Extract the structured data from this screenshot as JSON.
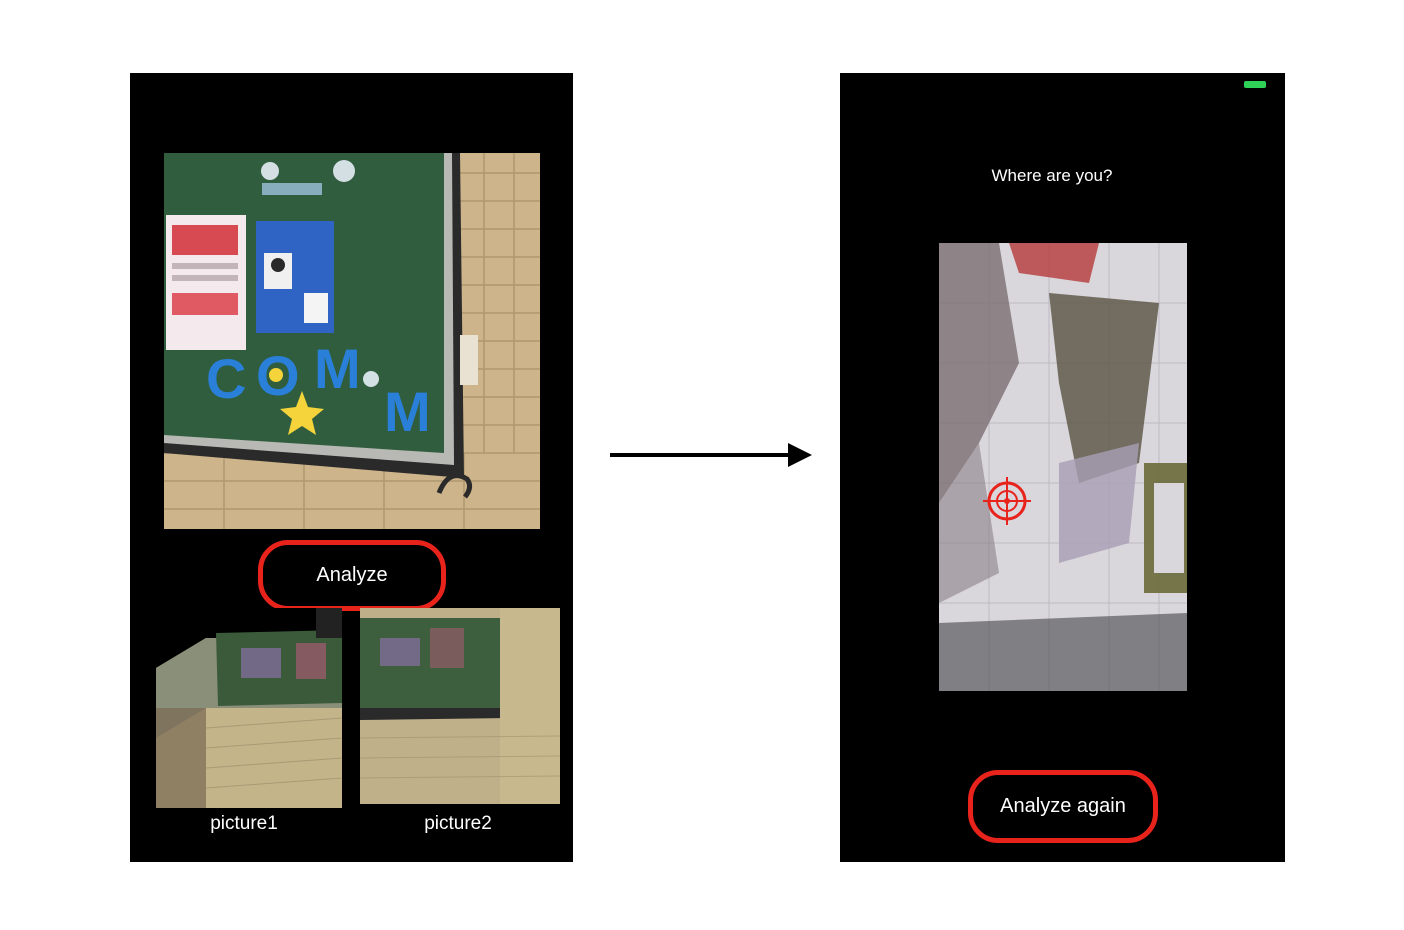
{
  "left_screen": {
    "analyze_label": "Analyze",
    "thumbnails": [
      {
        "caption": "picture1"
      },
      {
        "caption": "picture2"
      }
    ],
    "photo_text": {
      "letters": [
        "C",
        "O",
        "M",
        "M"
      ]
    }
  },
  "right_screen": {
    "question": "Where are you?",
    "analyze_again_label": "Analyze again"
  },
  "colors": {
    "highlight_ring": "#e8231b",
    "battery": "#2fd158",
    "target_marker": "#e8231b"
  }
}
